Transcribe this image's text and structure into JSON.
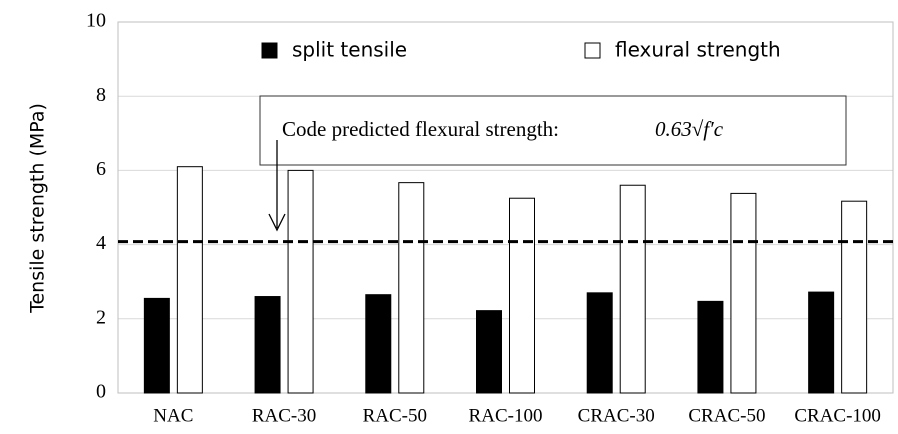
{
  "chart_data": {
    "type": "bar",
    "y_label": "Tensile strength (MPa)",
    "categories": [
      "NAC",
      "RAC-30",
      "RAC-50",
      "RAC-100",
      "CRAC-30",
      "CRAC-50",
      "CRAC-100"
    ],
    "series": [
      {
        "name": "split tensile",
        "color": "#000000",
        "values": [
          2.55,
          2.6,
          2.65,
          2.22,
          2.7,
          2.47,
          2.72
        ]
      },
      {
        "name": "flexural strength",
        "color": "#ffffff",
        "values": [
          6.1,
          6.0,
          5.67,
          5.25,
          5.6,
          5.38,
          5.17
        ]
      }
    ],
    "reference_line": 4.08,
    "annotation": "Code predicted flexural strength:",
    "formula": "0.63√f′c",
    "ylim": [
      0,
      10
    ],
    "yticks": [
      0,
      2,
      4,
      6,
      8,
      10
    ],
    "grid": true
  }
}
